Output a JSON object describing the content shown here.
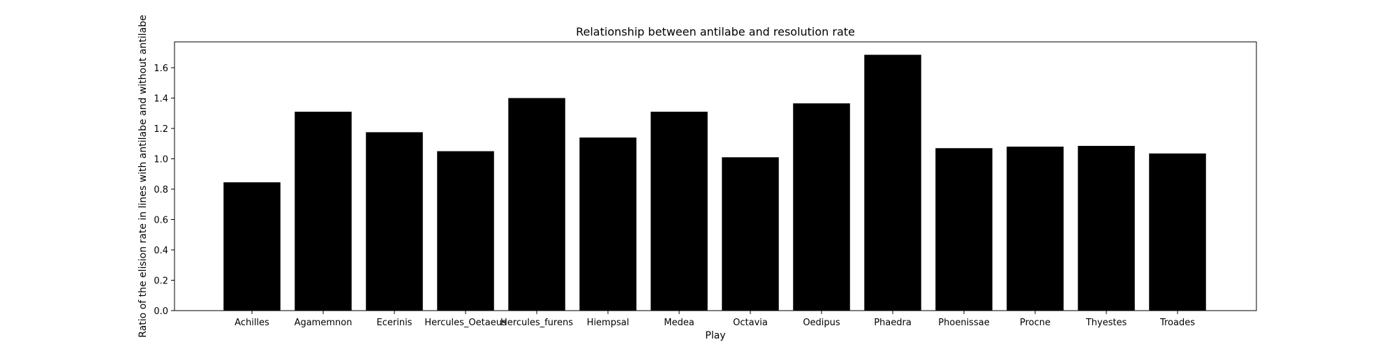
{
  "chart_data": {
    "type": "bar",
    "title": "Relationship between antilabe and resolution rate",
    "xlabel": "Play",
    "ylabel": "Ratio of the elision rate in lines with antilabe and without antilabe",
    "categories": [
      "Achilles",
      "Agamemnon",
      "Ecerinis",
      "Hercules_Oetaeus",
      "Hercules_furens",
      "Hiempsal",
      "Medea",
      "Octavia",
      "Oedipus",
      "Phaedra",
      "Phoenissae",
      "Procne",
      "Thyestes",
      "Troades"
    ],
    "values": [
      0.845,
      1.31,
      1.175,
      1.05,
      1.4,
      1.14,
      1.31,
      1.01,
      1.365,
      1.685,
      1.07,
      1.08,
      1.085,
      1.035
    ],
    "ylim": [
      0,
      1.77
    ],
    "yticks": [
      0.0,
      0.2,
      0.4,
      0.6,
      0.8,
      1.0,
      1.2,
      1.4,
      1.6
    ],
    "ytick_labels": [
      "0.0",
      "0.2",
      "0.4",
      "0.6",
      "0.8",
      "1.0",
      "1.2",
      "1.4",
      "1.6"
    ],
    "bar_color": "#000000",
    "grid": false,
    "legend": "none"
  }
}
